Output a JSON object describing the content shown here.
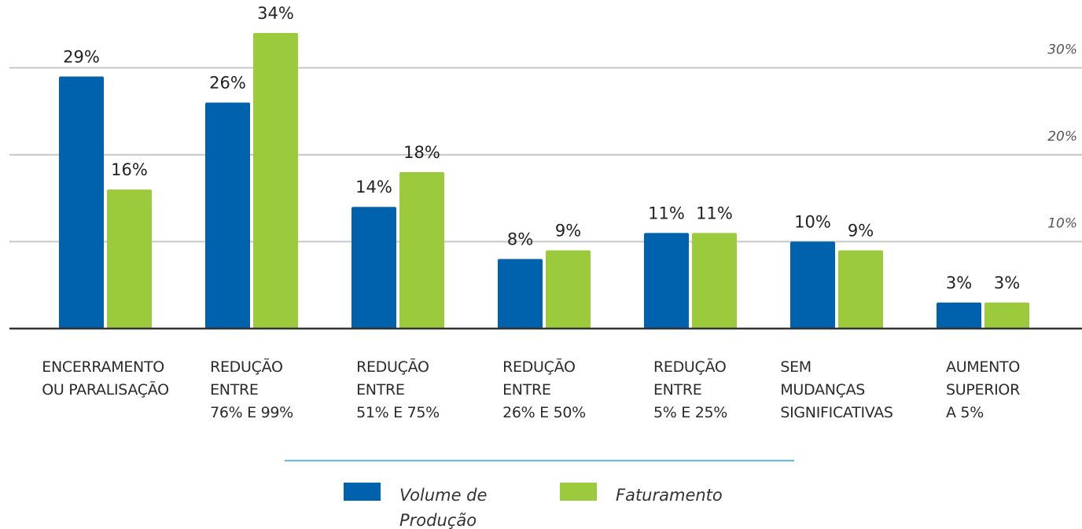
{
  "chart_data": {
    "type": "bar",
    "categories": [
      "ENCERRAMENTO\nOU PARALISAÇÃO",
      "REDUÇÃO\nENTRE\n76% E 99%",
      "REDUÇÃO\nENTRE\n51% E 75%",
      "REDUÇÃO\nENTRE\n26% E 50%",
      "REDUÇÃO\nENTRE\n5% E 25%",
      "SEM\nMUDANÇAS\nSIGNIFICATIVAS",
      "AUMENTO\nSUPERIOR\nA 5%"
    ],
    "series": [
      {
        "name": "Volume de\nProdução",
        "color": "#0061ad",
        "values": [
          29,
          26,
          14,
          8,
          11,
          10,
          3
        ],
        "value_labels": [
          "29%",
          "26%",
          "14%",
          "8%",
          "11%",
          "10%",
          "3%"
        ]
      },
      {
        "name": "Faturamento",
        "color": "#9bcb3c",
        "values": [
          16,
          34,
          18,
          9,
          11,
          9,
          3
        ],
        "value_labels": [
          "16%",
          "34%",
          "18%",
          "9%",
          "11%",
          "9%",
          "3%"
        ]
      }
    ],
    "ylim": [
      0,
      35
    ],
    "yticks": [
      {
        "value": 10,
        "label": "10%"
      },
      {
        "value": 20,
        "label": "20%"
      },
      {
        "value": 30,
        "label": "30%"
      }
    ],
    "grid": true
  }
}
